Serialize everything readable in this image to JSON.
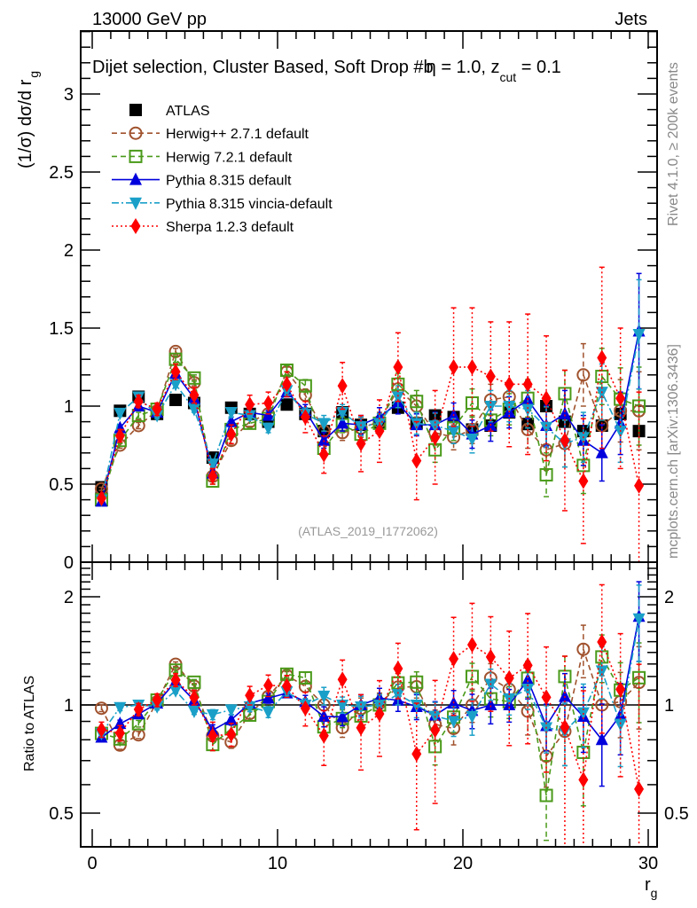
{
  "header": {
    "left": "13000 GeV pp",
    "right": "Jets"
  },
  "side_labels": {
    "rivet": "Rivet 4.1.0, ≥ 200k events",
    "mcplots": "mcplots.cern.ch [arXiv:1306.3436]"
  },
  "chart_data": [
    {
      "type": "line",
      "panel": "main",
      "title": "Dijet selection, Cluster Based, Soft Drop #b",
      "title_suffix_parts": [
        "η = 1.0, z",
        "cut",
        " = 0.1"
      ],
      "analysis_id": "(ATLAS_2019_I1772062)",
      "xlabel": "r",
      "xlabel_sub": "g",
      "ylabel": "(1/σ) dσ/d r",
      "ylabel_sub": "g",
      "xlim": [
        -0.6,
        30.5
      ],
      "ylim": [
        0,
        3.4
      ],
      "yticks": [
        0,
        0.5,
        1,
        1.5,
        2,
        2.5,
        3
      ],
      "ytick_labels": [
        "0",
        "0.5",
        "1",
        "1.5",
        "2",
        "2.5",
        "3"
      ],
      "xticks": [
        0,
        10,
        20,
        30
      ],
      "xtick_labels": [
        "0",
        "10",
        "20",
        "30"
      ],
      "legend_position": "top-left",
      "x": [
        0.5,
        1.5,
        2.5,
        3.5,
        4.5,
        5.5,
        6.5,
        7.5,
        8.5,
        9.5,
        10.5,
        11.5,
        12.5,
        13.5,
        14.5,
        15.5,
        16.5,
        17.5,
        18.5,
        19.5,
        20.5,
        21.5,
        22.5,
        23.5,
        24.5,
        25.5,
        26.5,
        27.5,
        28.5,
        29.5
      ],
      "series": [
        {
          "name": "ATLAS",
          "style": "data",
          "color": "#000000",
          "values": [
            0.48,
            0.97,
            1.06,
            0.95,
            1.04,
            1.02,
            0.67,
            0.99,
            0.95,
            0.9,
            1.01,
            0.95,
            0.84,
            0.96,
            0.88,
            0.89,
            0.99,
            0.89,
            0.94,
            0.93,
            0.85,
            0.875,
            0.96,
            0.885,
            1.0,
            0.9,
            0.84,
            0.875,
            0.95,
            0.84
          ],
          "errors": [
            0.01,
            0.01,
            0.01,
            0.01,
            0.01,
            0.01,
            0.01,
            0.01,
            0.01,
            0.01,
            0.01,
            0.01,
            0.01,
            0.01,
            0.01,
            0.01,
            0.01,
            0.01,
            0.01,
            0.01,
            0.01,
            0.01,
            0.01,
            0.01,
            0.01,
            0.01,
            0.01,
            0.01,
            0.01,
            0.01
          ]
        },
        {
          "name": "Herwig++ 2.7.1 default",
          "style": "open-circle",
          "dash": "dashed",
          "color": "#a0522d",
          "values": [
            0.47,
            0.75,
            0.875,
            0.97,
            1.35,
            1.15,
            0.55,
            0.78,
            0.9,
            0.95,
            1.22,
            1.07,
            0.84,
            0.83,
            0.86,
            0.9,
            1.11,
            1.0,
            0.83,
            0.8,
            0.85,
            1.04,
            1.06,
            0.85,
            0.72,
            0.76,
            1.2,
            0.875,
            0.97,
            0.97
          ],
          "errors": [
            0.01,
            0.02,
            0.02,
            0.02,
            0.02,
            0.02,
            0.02,
            0.03,
            0.03,
            0.03,
            0.03,
            0.04,
            0.05,
            0.05,
            0.06,
            0.06,
            0.07,
            0.07,
            0.08,
            0.08,
            0.09,
            0.1,
            0.1,
            0.12,
            0.13,
            0.15,
            0.2,
            0.18,
            0.2,
            0.25
          ]
        },
        {
          "name": "Herwig 7.2.1 default",
          "style": "open-square",
          "dash": "dashed",
          "color": "#4a9a1a",
          "values": [
            0.4,
            0.78,
            0.94,
            0.98,
            1.3,
            1.18,
            0.52,
            0.85,
            0.89,
            0.92,
            1.23,
            1.13,
            0.73,
            0.88,
            0.82,
            0.89,
            1.14,
            1.03,
            0.72,
            0.86,
            1.02,
            0.91,
            0.98,
            1.05,
            0.56,
            1.08,
            0.62,
            1.19,
            1.045,
            1.0
          ],
          "errors": [
            0.01,
            0.02,
            0.02,
            0.02,
            0.02,
            0.02,
            0.02,
            0.03,
            0.03,
            0.03,
            0.03,
            0.04,
            0.05,
            0.05,
            0.06,
            0.06,
            0.07,
            0.07,
            0.08,
            0.08,
            0.09,
            0.1,
            0.1,
            0.12,
            0.14,
            0.15,
            0.18,
            0.18,
            0.2,
            0.25
          ]
        },
        {
          "name": "Pythia 8.315 default",
          "style": "filled-triangle-up",
          "dash": "solid",
          "color": "#0000dd",
          "values": [
            0.39,
            0.86,
            1.0,
            0.96,
            1.21,
            1.05,
            0.57,
            0.9,
            0.96,
            0.94,
            1.09,
            0.97,
            0.78,
            0.89,
            0.88,
            0.93,
            1.02,
            0.88,
            0.88,
            0.94,
            0.82,
            0.875,
            0.96,
            1.04,
            0.875,
            0.95,
            0.78,
            0.7,
            0.89,
            1.48
          ],
          "errors": [
            0.01,
            0.02,
            0.02,
            0.02,
            0.02,
            0.02,
            0.02,
            0.03,
            0.03,
            0.03,
            0.03,
            0.04,
            0.05,
            0.05,
            0.06,
            0.06,
            0.07,
            0.07,
            0.08,
            0.08,
            0.09,
            0.1,
            0.1,
            0.12,
            0.13,
            0.15,
            0.16,
            0.18,
            0.2,
            0.37
          ]
        },
        {
          "name": "Pythia 8.315 vincia-default",
          "style": "filled-triangle-down",
          "dash": "dashdot",
          "color": "#1aa0c8",
          "values": [
            0.4,
            0.955,
            1.06,
            0.94,
            1.14,
            0.98,
            0.63,
            0.96,
            0.94,
            0.86,
            1.1,
            0.95,
            0.89,
            0.96,
            0.87,
            0.89,
            1.06,
            0.89,
            0.875,
            0.84,
            0.79,
            1.0,
            1.0,
            0.98,
            0.865,
            0.76,
            0.8,
            1.09,
            0.84,
            1.46
          ],
          "errors": [
            0.01,
            0.02,
            0.02,
            0.02,
            0.02,
            0.02,
            0.02,
            0.03,
            0.03,
            0.03,
            0.03,
            0.04,
            0.05,
            0.05,
            0.06,
            0.06,
            0.07,
            0.07,
            0.08,
            0.08,
            0.09,
            0.1,
            0.1,
            0.12,
            0.13,
            0.15,
            0.16,
            0.18,
            0.2,
            0.35
          ]
        },
        {
          "name": "Sherpa 1.2.3 default",
          "style": "filled-diamond",
          "dash": "dotted",
          "color": "#ff0000",
          "values": [
            0.41,
            0.81,
            1.03,
            0.98,
            1.22,
            1.07,
            0.55,
            0.82,
            1.01,
            1.02,
            1.14,
            0.93,
            0.69,
            1.13,
            0.76,
            0.84,
            1.25,
            0.65,
            0.8,
            1.25,
            1.25,
            1.19,
            1.14,
            1.14,
            1.05,
            0.78,
            0.52,
            1.31,
            1.05,
            0.49
          ],
          "errors": [
            0.02,
            0.04,
            0.04,
            0.04,
            0.05,
            0.05,
            0.05,
            0.06,
            0.06,
            0.07,
            0.08,
            0.1,
            0.12,
            0.15,
            0.18,
            0.2,
            0.22,
            0.25,
            0.3,
            0.38,
            0.38,
            0.35,
            0.4,
            0.45,
            0.4,
            0.45,
            0.4,
            0.58,
            0.45,
            0.6
          ]
        }
      ]
    },
    {
      "type": "line",
      "panel": "ratio",
      "ylabel": "Ratio to ATLAS",
      "yscale": "log",
      "ylim": [
        0.4,
        2.5
      ],
      "yticks": [
        0.5,
        1,
        2
      ],
      "ytick_labels": [
        "0.5",
        "1",
        "2"
      ],
      "reference_line": 1,
      "note": "ratio = model / ATLAS for each series"
    }
  ]
}
